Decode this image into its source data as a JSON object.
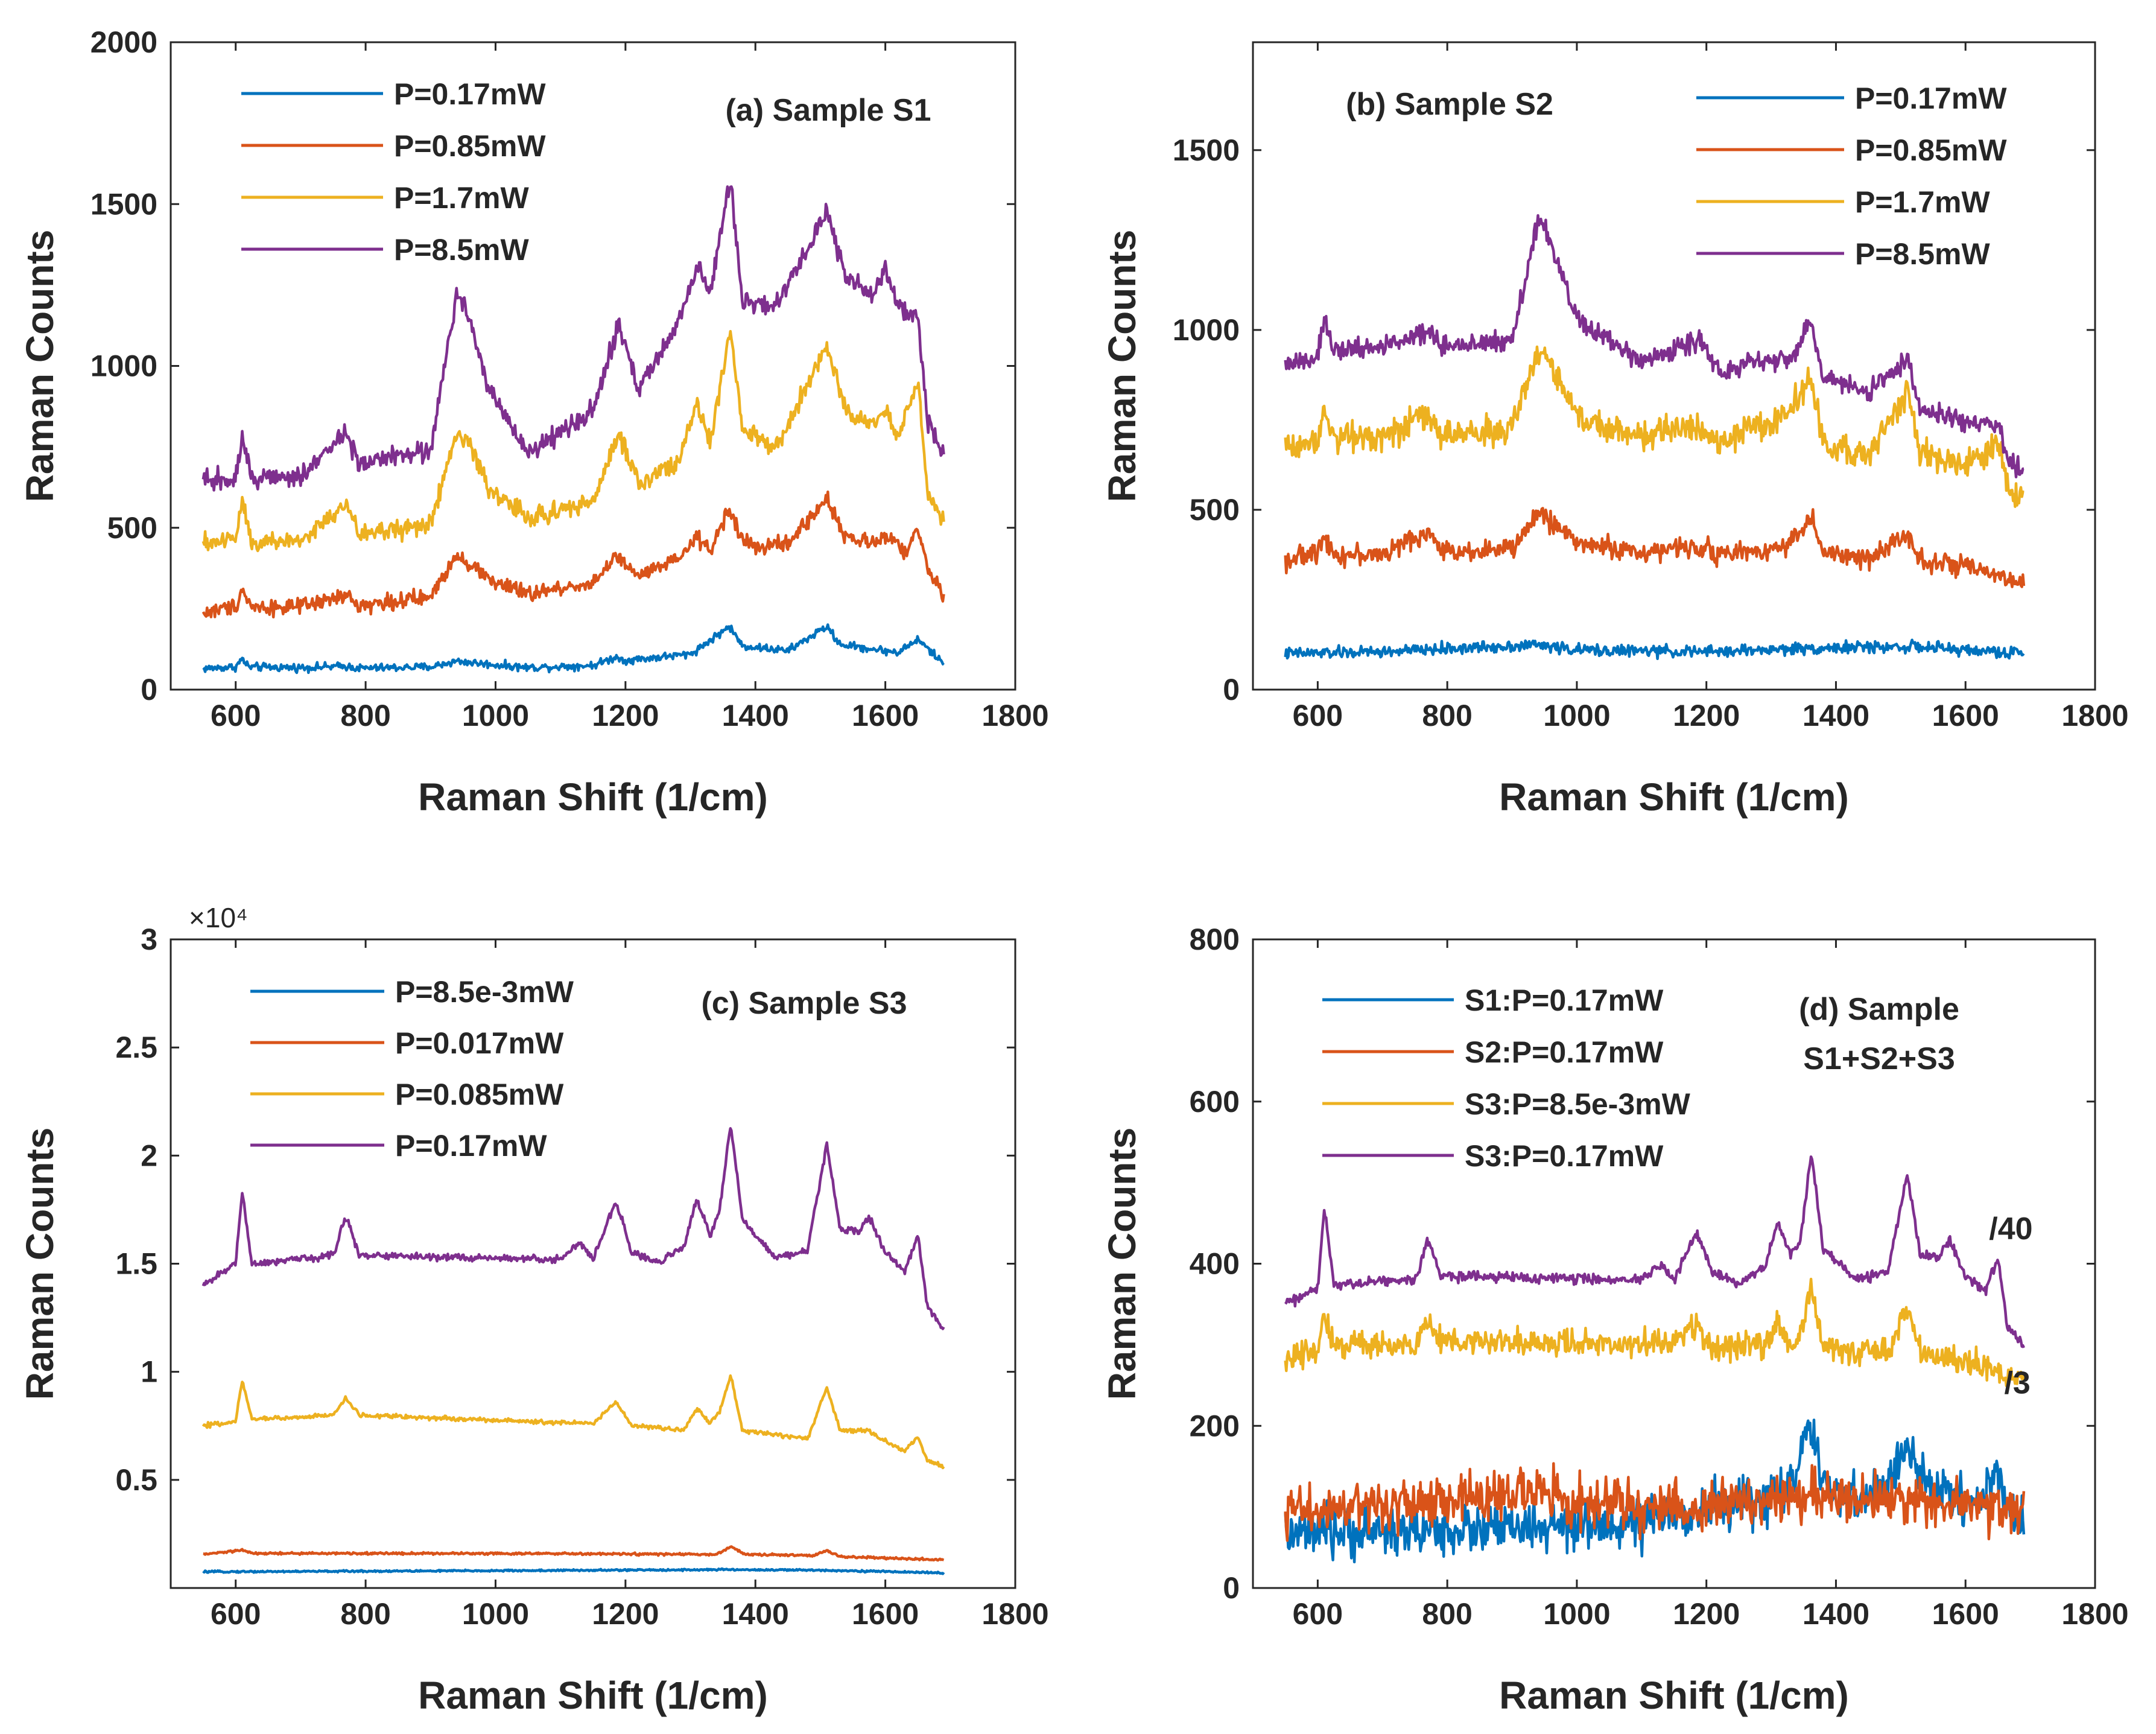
{
  "figure": {
    "colors": {
      "blue": "#0072BD",
      "orange": "#D95319",
      "yellow": "#EDB120",
      "purple": "#7E2F8E",
      "axis": "#262626"
    }
  },
  "chart_data": [
    {
      "id": "a",
      "type": "line",
      "title": "(a) Sample S1",
      "xlabel": "Raman Shift (1/cm)",
      "ylabel": "Raman Counts",
      "xlim": [
        500,
        1800
      ],
      "ylim": [
        0,
        2000
      ],
      "xticks": [
        600,
        800,
        1000,
        1200,
        1400,
        1600,
        1800
      ],
      "xtick_labels": [
        "600",
        "800",
        "1000",
        "1200",
        "1400",
        "1600",
        "1800"
      ],
      "yticks": [
        0,
        500,
        1000,
        1500,
        2000
      ],
      "ytick_labels": [
        "0",
        "500",
        "1000",
        "1500",
        "2000"
      ],
      "legend_position": "top-left",
      "legend": [
        "P=0.17mW",
        "P=0.85mW",
        "P=1.7mW",
        "P=8.5mW"
      ],
      "series": [
        {
          "name": "P=0.17mW",
          "color": "#0072BD",
          "noise": 6,
          "x": [
            550,
            600,
            610,
            620,
            700,
            770,
            790,
            900,
            940,
            980,
            1050,
            1150,
            1185,
            1200,
            1300,
            1315,
            1360,
            1380,
            1450,
            1510,
            1530,
            1580,
            1600,
            1620,
            1650,
            1690
          ],
          "values": [
            65,
            70,
            95,
            70,
            68,
            72,
            66,
            70,
            88,
            80,
            68,
            75,
            100,
            90,
            110,
            130,
            195,
            135,
            120,
            195,
            140,
            125,
            120,
            115,
            155,
            80
          ]
        },
        {
          "name": "P=0.85mW",
          "color": "#D95319",
          "noise": 12,
          "x": [
            550,
            600,
            610,
            625,
            700,
            770,
            790,
            900,
            940,
            965,
            1000,
            1050,
            1150,
            1185,
            1220,
            1280,
            1310,
            1330,
            1360,
            1380,
            1400,
            1450,
            1510,
            1540,
            1580,
            1610,
            1630,
            1650,
            1670,
            1690
          ],
          "values": [
            235,
            260,
            310,
            255,
            255,
            290,
            260,
            285,
            420,
            380,
            330,
            295,
            330,
            410,
            350,
            400,
            470,
            430,
            560,
            460,
            440,
            450,
            590,
            470,
            450,
            480,
            420,
            490,
            350,
            295
          ]
        },
        {
          "name": "P=1.7mW",
          "color": "#EDB120",
          "noise": 15,
          "x": [
            550,
            600,
            610,
            625,
            700,
            770,
            790,
            900,
            940,
            960,
            990,
            1050,
            1150,
            1190,
            1220,
            1280,
            1310,
            1330,
            1362,
            1380,
            1430,
            1510,
            1540,
            1580,
            1600,
            1620,
            1650,
            1665,
            1690
          ],
          "values": [
            450,
            470,
            590,
            455,
            460,
            570,
            480,
            510,
            790,
            760,
            620,
            530,
            580,
            790,
            640,
            700,
            880,
            760,
            1110,
            800,
            740,
            1060,
            850,
            830,
            860,
            780,
            950,
            620,
            510
          ]
        },
        {
          "name": "P=8.5mW",
          "color": "#7E2F8E",
          "noise": 15,
          "x": [
            550,
            600,
            610,
            625,
            700,
            770,
            790,
            900,
            940,
            960,
            990,
            1050,
            1150,
            1190,
            1220,
            1280,
            1310,
            1330,
            1362,
            1380,
            1430,
            1510,
            1540,
            1580,
            1600,
            1620,
            1650,
            1665,
            1690
          ],
          "values": [
            640,
            660,
            780,
            650,
            660,
            790,
            700,
            740,
            1220,
            1150,
            930,
            730,
            860,
            1130,
            930,
            1120,
            1310,
            1230,
            1570,
            1200,
            1180,
            1480,
            1270,
            1210,
            1300,
            1180,
            1150,
            830,
            740
          ]
        }
      ]
    },
    {
      "id": "b",
      "type": "line",
      "title": "(b) Sample S2",
      "xlabel": "Raman Shift (1/cm)",
      "ylabel": "Raman Counts",
      "xlim": [
        500,
        1800
      ],
      "ylim": [
        0,
        1800
      ],
      "xticks": [
        600,
        800,
        1000,
        1200,
        1400,
        1600,
        1800
      ],
      "xtick_labels": [
        "600",
        "800",
        "1000",
        "1200",
        "1400",
        "1600",
        "1800"
      ],
      "yticks": [
        0,
        500,
        1000,
        1500
      ],
      "ytick_labels": [
        "0",
        "500",
        "1000",
        "1500"
      ],
      "legend_position": "top-right",
      "legend": [
        "P=0.17mW",
        "P=0.85mW",
        "P=1.7mW",
        "P=8.5mW"
      ],
      "series": [
        {
          "name": "P=0.17mW",
          "color": "#0072BD",
          "noise": 8,
          "x": [
            550,
            700,
            940,
            1000,
            1200,
            1360,
            1510,
            1690
          ],
          "values": [
            100,
            105,
            125,
            110,
            105,
            115,
            120,
            100
          ]
        },
        {
          "name": "P=0.85mW",
          "color": "#D95319",
          "noise": 14,
          "x": [
            550,
            600,
            610,
            625,
            700,
            770,
            790,
            900,
            940,
            960,
            1000,
            1100,
            1190,
            1220,
            1300,
            1330,
            1362,
            1380,
            1450,
            1510,
            1530,
            1600,
            1690
          ],
          "values": [
            360,
            380,
            440,
            375,
            375,
            440,
            385,
            390,
            490,
            470,
            410,
            380,
            400,
            375,
            390,
            410,
            480,
            380,
            360,
            440,
            360,
            340,
            290
          ]
        },
        {
          "name": "P=1.7mW",
          "color": "#EDB120",
          "noise": 20,
          "x": [
            550,
            600,
            610,
            625,
            700,
            770,
            790,
            900,
            940,
            960,
            1000,
            1100,
            1190,
            1220,
            1300,
            1330,
            1362,
            1380,
            1450,
            1510,
            1530,
            1600,
            1650,
            1665,
            1690
          ],
          "values": [
            680,
            690,
            800,
            700,
            710,
            760,
            710,
            720,
            950,
            900,
            760,
            700,
            740,
            690,
            740,
            780,
            870,
            680,
            650,
            830,
            660,
            620,
            680,
            560,
            540
          ]
        },
        {
          "name": "P=8.5mW",
          "color": "#7E2F8E",
          "noise": 14,
          "x": [
            550,
            600,
            610,
            625,
            700,
            770,
            790,
            900,
            940,
            960,
            1000,
            1100,
            1190,
            1220,
            1300,
            1330,
            1362,
            1380,
            1450,
            1510,
            1530,
            1600,
            1650,
            1665,
            1690
          ],
          "values": [
            900,
            930,
            1030,
            940,
            950,
            1000,
            950,
            970,
            1300,
            1250,
            1030,
            910,
            970,
            890,
            920,
            920,
            1030,
            860,
            830,
            920,
            780,
            740,
            740,
            640,
            600
          ]
        }
      ]
    },
    {
      "id": "c",
      "type": "line",
      "title": "(c) Sample S3",
      "xlabel": "Raman Shift (1/cm)",
      "ylabel": "Raman Counts",
      "xlim": [
        500,
        1800
      ],
      "ylim": [
        0,
        30000
      ],
      "exponent_label": "×10⁴",
      "xticks": [
        600,
        800,
        1000,
        1200,
        1400,
        1600,
        1800
      ],
      "xtick_labels": [
        "600",
        "800",
        "1000",
        "1200",
        "1400",
        "1600",
        "1800"
      ],
      "yticks": [
        5000,
        10000,
        15000,
        20000,
        25000,
        30000
      ],
      "ytick_labels": [
        "0.5",
        "1",
        "1.5",
        "2",
        "2.5",
        "3"
      ],
      "legend_position": "top-left",
      "legend": [
        "P=8.5e-3mW",
        "P=0.017mW",
        "P=0.085mW",
        "P=0.17mW"
      ],
      "series": [
        {
          "name": "P=8.5e-3mW",
          "color": "#0072BD",
          "noise": 20,
          "x": [
            550,
            1000,
            1360,
            1510,
            1690
          ],
          "values": [
            750,
            800,
            850,
            820,
            700
          ]
        },
        {
          "name": "P=0.017mW",
          "color": "#D95319",
          "noise": 25,
          "x": [
            550,
            610,
            625,
            1000,
            1340,
            1362,
            1385,
            1490,
            1510,
            1530,
            1690
          ],
          "values": [
            1550,
            1750,
            1600,
            1600,
            1550,
            1900,
            1550,
            1500,
            1750,
            1450,
            1300
          ]
        },
        {
          "name": "P=0.085mW",
          "color": "#EDB120",
          "noise": 50,
          "x": [
            550,
            600,
            610,
            625,
            750,
            770,
            790,
            1150,
            1185,
            1210,
            1290,
            1310,
            1330,
            1345,
            1362,
            1380,
            1480,
            1510,
            1530,
            1570,
            1600,
            1630,
            1650,
            1665,
            1690
          ],
          "values": [
            7500,
            7700,
            9600,
            7800,
            8000,
            8800,
            8000,
            7600,
            8600,
            7500,
            7300,
            8300,
            7600,
            8200,
            9800,
            7300,
            6900,
            9300,
            7300,
            7300,
            6800,
            6300,
            7000,
            5900,
            5600
          ]
        },
        {
          "name": "P=0.17mW",
          "color": "#7E2F8E",
          "noise": 80,
          "x": [
            550,
            600,
            610,
            625,
            750,
            770,
            790,
            1100,
            1130,
            1150,
            1185,
            1210,
            1250,
            1290,
            1310,
            1330,
            1345,
            1362,
            1380,
            1430,
            1480,
            1510,
            1530,
            1560,
            1575,
            1600,
            1630,
            1650,
            1665,
            1690
          ],
          "values": [
            14000,
            15000,
            18300,
            15000,
            15400,
            17200,
            15400,
            15200,
            16000,
            15200,
            17900,
            15500,
            15000,
            15800,
            18000,
            16300,
            17500,
            21500,
            17000,
            15300,
            15600,
            20500,
            16600,
            16500,
            17200,
            15500,
            14700,
            16300,
            13000,
            12000
          ]
        }
      ]
    },
    {
      "id": "d",
      "type": "line",
      "title": "(d) Sample S1+S2+S3",
      "title_lines": [
        "(d) Sample",
        "S1+S2+S3"
      ],
      "xlabel": "Raman Shift (1/cm)",
      "ylabel": "Raman Counts",
      "xlim": [
        500,
        1800
      ],
      "ylim": [
        0,
        800
      ],
      "xticks": [
        600,
        800,
        1000,
        1200,
        1400,
        1600,
        1800
      ],
      "xtick_labels": [
        "600",
        "800",
        "1000",
        "1200",
        "1400",
        "1600",
        "1800"
      ],
      "yticks": [
        0,
        200,
        400,
        600,
        800
      ],
      "ytick_labels": [
        "0",
        "200",
        "400",
        "600",
        "800"
      ],
      "legend_position": "top-left",
      "legend": [
        "S1:P=0.17mW",
        "S2:P=0.17mW",
        "S3:P=8.5e-3mW",
        "S3:P=0.17mW"
      ],
      "annotations": [
        {
          "text": "/40",
          "x": 1670,
          "y": 430
        },
        {
          "text": "/3",
          "x": 1680,
          "y": 240
        }
      ],
      "series": [
        {
          "name": "S1:P=0.17mW",
          "color": "#0072BD",
          "noise": 15,
          "x": [
            550,
            700,
            1000,
            1100,
            1200,
            1300,
            1330,
            1360,
            1380,
            1450,
            1490,
            1510,
            1530,
            1600,
            1630,
            1650,
            1665,
            1690
          ],
          "values": [
            65,
            70,
            75,
            80,
            100,
            110,
            130,
            200,
            120,
            110,
            140,
            180,
            130,
            110,
            110,
            150,
            95,
            80
          ]
        },
        {
          "name": "S2:P=0.17mW",
          "color": "#D95319",
          "noise": 15,
          "x": [
            550,
            700,
            940,
            1000,
            1200,
            1360,
            1510,
            1690
          ],
          "values": [
            95,
            100,
            120,
            105,
            100,
            115,
            110,
            95
          ]
        },
        {
          "name": "S3:P=8.5e-3mW",
          "color": "#EDB120",
          "noise": 8,
          "x": [
            550,
            600,
            610,
            625,
            750,
            770,
            790,
            1150,
            1185,
            1210,
            1290,
            1310,
            1330,
            1345,
            1362,
            1380,
            1480,
            1510,
            1530,
            1600,
            1650,
            1665,
            1690
          ],
          "values": [
            280,
            295,
            340,
            300,
            300,
            330,
            305,
            300,
            325,
            295,
            300,
            325,
            300,
            315,
            375,
            295,
            290,
            350,
            290,
            280,
            270,
            255,
            255
          ]
        },
        {
          "name": "S3:P=0.17mW",
          "color": "#7E2F8E",
          "noise": 3,
          "x": [
            550,
            600,
            610,
            625,
            750,
            770,
            790,
            1100,
            1130,
            1150,
            1185,
            1210,
            1250,
            1290,
            1310,
            1330,
            1345,
            1362,
            1380,
            1430,
            1480,
            1510,
            1530,
            1560,
            1575,
            1600,
            1630,
            1650,
            1665,
            1690
          ],
          "values": [
            350,
            370,
            470,
            375,
            380,
            430,
            385,
            380,
            400,
            380,
            440,
            390,
            375,
            395,
            450,
            410,
            430,
            535,
            420,
            380,
            390,
            510,
            410,
            410,
            430,
            385,
            365,
            405,
            320,
            300
          ]
        }
      ]
    }
  ]
}
